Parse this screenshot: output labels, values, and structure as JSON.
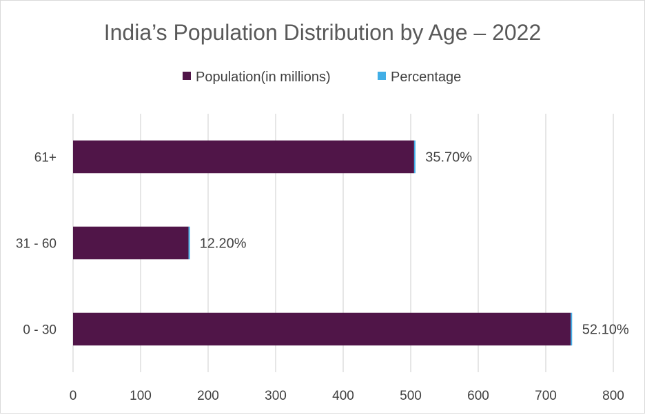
{
  "chart_data": {
    "type": "bar",
    "orientation": "horizontal",
    "stacked": true,
    "title": "India’s Population Distribution by Age – 2022",
    "categories": [
      "0 - 30",
      "31 - 60",
      "61+"
    ],
    "series": [
      {
        "name": "Population(in millions)",
        "color": "#501548",
        "values": [
          737,
          171,
          505
        ]
      },
      {
        "name": "Percentage",
        "color": "#41aee6",
        "values": [
          0.521,
          0.122,
          0.357
        ]
      }
    ],
    "data_labels": [
      "52.10%",
      "12.20%",
      "35.70%"
    ],
    "xlim": [
      0,
      800
    ],
    "x_ticks": [
      "0",
      "100",
      "200",
      "300",
      "400",
      "500",
      "600",
      "700",
      "800"
    ],
    "grid": "vertical",
    "legend_position": "top"
  }
}
